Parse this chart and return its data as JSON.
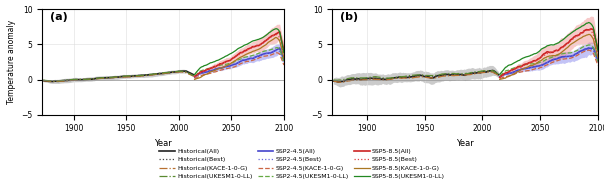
{
  "title_a": "(a)",
  "title_b": "(b)",
  "ylabel": "Temperature anomaly",
  "xlabel": "Year",
  "ylim": [
    -5,
    10
  ],
  "yticks": [
    -5,
    0,
    5,
    10
  ],
  "xlim_hist": 1870,
  "xlim_fut": 2100,
  "xticks": [
    1900,
    1950,
    2000,
    2050,
    2100
  ],
  "hist_start": 1871,
  "hist_end": 2014,
  "fut_start": 2015,
  "fut_end": 2100,
  "colors": {
    "historical_all": "#222222",
    "historical_best": "#444444",
    "historical_kace": "#b87030",
    "historical_ukesm": "#5a8a30",
    "ssp245_all": "#4444cc",
    "ssp245_best": "#6666dd",
    "ssp245_kace": "#cc6644",
    "ssp245_ukesm": "#66aa44",
    "ssp585_all": "#cc2222",
    "ssp585_best": "#dd4444",
    "ssp585_kace": "#aa7722",
    "ssp585_ukesm": "#228822",
    "shade_hist": "#999999",
    "shade_ssp245": "#8888ee",
    "shade_ssp585": "#ee8888"
  },
  "legend_entries": [
    {
      "label": "Historical(All)",
      "color": "#222222",
      "ls": "-",
      "lw": 1.2
    },
    {
      "label": "Historical(Best)",
      "color": "#444444",
      "ls": ":",
      "lw": 1.0
    },
    {
      "label": "Historical(KACE-1-0-G)",
      "color": "#b87030",
      "ls": "-.",
      "lw": 1.0
    },
    {
      "label": "Historical(UKESM1-0-LL)",
      "color": "#5a8a30",
      "ls": "-.",
      "lw": 1.0
    },
    {
      "label": "SSP2-4.5(All)",
      "color": "#4444cc",
      "ls": "-",
      "lw": 1.2
    },
    {
      "label": "SSP2-4.5(Best)",
      "color": "#6666dd",
      "ls": ":",
      "lw": 1.0
    },
    {
      "label": "SSP2-4.5(KACE-1-0-G)",
      "color": "#cc6644",
      "ls": "--",
      "lw": 1.0
    },
    {
      "label": "SSP2-4.5(UKESM1-0-LL)",
      "color": "#66aa44",
      "ls": "--",
      "lw": 1.0
    },
    {
      "label": "SSP5-8.5(All)",
      "color": "#cc2222",
      "ls": "-",
      "lw": 1.2
    },
    {
      "label": "SSP5-8.5(Best)",
      "color": "#dd4444",
      "ls": ":",
      "lw": 1.0
    },
    {
      "label": "SSP5-8.5(KACE-1-0-G)",
      "color": "#aa7722",
      "ls": "-",
      "lw": 1.0
    },
    {
      "label": "SSP5-8.5(UKESM1-0-LL)",
      "color": "#228822",
      "ls": "-",
      "lw": 1.0
    }
  ]
}
